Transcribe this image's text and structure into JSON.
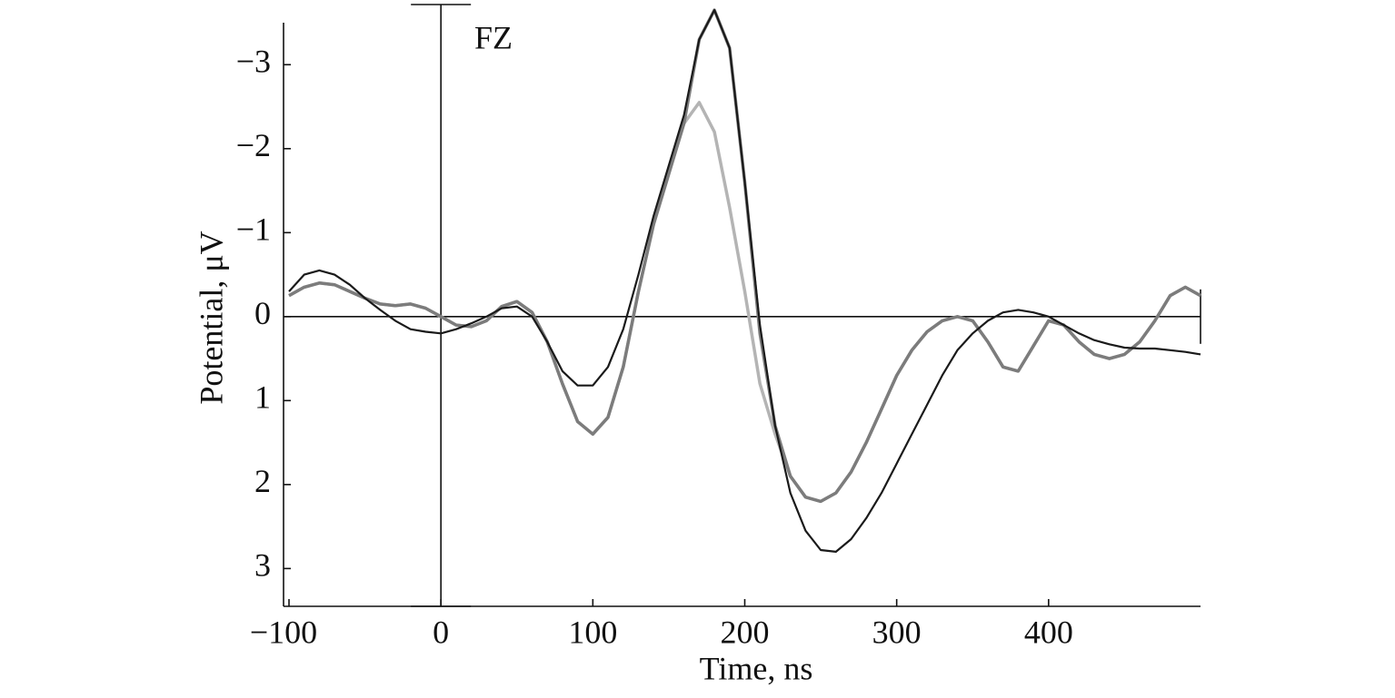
{
  "chart_data": {
    "type": "line",
    "annotation": "FZ",
    "xlabel": "Time, ns",
    "ylabel": "Potential, μV",
    "y_inverted": true,
    "xlim": [
      -100,
      500
    ],
    "ylim": [
      -3.5,
      3.45
    ],
    "xticks": [
      {
        "value": -100,
        "label": "−100"
      },
      0,
      100,
      200,
      300,
      400
    ],
    "yticks": [
      {
        "value": -3,
        "label": "−3"
      },
      {
        "value": -2,
        "label": "−2"
      },
      {
        "value": -1,
        "label": "−1"
      },
      0,
      1,
      2,
      3
    ],
    "x": [
      -100,
      -90,
      -80,
      -70,
      -60,
      -50,
      -40,
      -30,
      -20,
      -10,
      0,
      10,
      20,
      30,
      40,
      50,
      60,
      70,
      80,
      90,
      100,
      110,
      120,
      130,
      140,
      150,
      160,
      170,
      180,
      190,
      200,
      210,
      220,
      230,
      240,
      250,
      260,
      270,
      280,
      290,
      300,
      310,
      320,
      330,
      340,
      350,
      360,
      370,
      380,
      390,
      400,
      410,
      420,
      430,
      440,
      450,
      460,
      470,
      480,
      490,
      500
    ],
    "series": [
      {
        "color": "#b4b4b4",
        "values": [
          -0.25,
          -0.35,
          -0.4,
          -0.38,
          -0.3,
          -0.22,
          -0.15,
          -0.13,
          -0.15,
          -0.1,
          0.0,
          0.1,
          0.12,
          0.05,
          -0.12,
          -0.18,
          -0.05,
          0.3,
          0.8,
          1.25,
          1.4,
          1.2,
          0.6,
          -0.3,
          -1.1,
          -1.7,
          -2.3,
          -2.55,
          -2.2,
          -1.3,
          -0.3,
          0.8,
          1.4,
          1.9,
          2.15,
          2.2,
          2.1,
          1.85,
          1.5,
          1.1,
          0.7,
          0.4,
          0.18,
          0.05,
          0.0,
          0.05,
          0.3,
          0.6,
          0.65,
          0.35,
          0.05,
          0.1,
          0.3,
          0.45,
          0.5,
          0.45,
          0.3,
          0.05,
          -0.25,
          -0.35,
          -0.25
        ]
      },
      {
        "color": "#7c7c7c",
        "values": [
          -0.25,
          -0.35,
          -0.4,
          -0.38,
          -0.3,
          -0.22,
          -0.15,
          -0.13,
          -0.15,
          -0.1,
          0.0,
          0.1,
          0.12,
          0.05,
          -0.12,
          -0.18,
          -0.05,
          0.3,
          0.8,
          1.25,
          1.4,
          1.2,
          0.6,
          -0.3,
          -1.1,
          -1.7,
          -2.3,
          -3.3,
          -3.65,
          -3.2,
          -1.6,
          0.2,
          1.3,
          1.9,
          2.15,
          2.2,
          2.1,
          1.85,
          1.5,
          1.1,
          0.7,
          0.4,
          0.18,
          0.05,
          0.0,
          0.05,
          0.3,
          0.6,
          0.65,
          0.35,
          0.05,
          0.1,
          0.3,
          0.45,
          0.5,
          0.45,
          0.3,
          0.05,
          -0.25,
          -0.35,
          -0.25
        ]
      },
      {
        "color": "#1a1a1a",
        "values": [
          -0.3,
          -0.5,
          -0.55,
          -0.5,
          -0.38,
          -0.22,
          -0.08,
          0.05,
          0.15,
          0.18,
          0.2,
          0.15,
          0.08,
          0.0,
          -0.1,
          -0.12,
          0.0,
          0.3,
          0.65,
          0.82,
          0.82,
          0.6,
          0.15,
          -0.5,
          -1.2,
          -1.8,
          -2.4,
          -3.3,
          -3.65,
          -3.2,
          -1.6,
          0.1,
          1.3,
          2.1,
          2.55,
          2.78,
          2.8,
          2.65,
          2.4,
          2.1,
          1.75,
          1.4,
          1.05,
          0.7,
          0.4,
          0.2,
          0.05,
          -0.05,
          -0.08,
          -0.05,
          0.0,
          0.1,
          0.2,
          0.28,
          0.33,
          0.37,
          0.38,
          0.38,
          0.4,
          0.42,
          0.45
        ]
      }
    ]
  }
}
